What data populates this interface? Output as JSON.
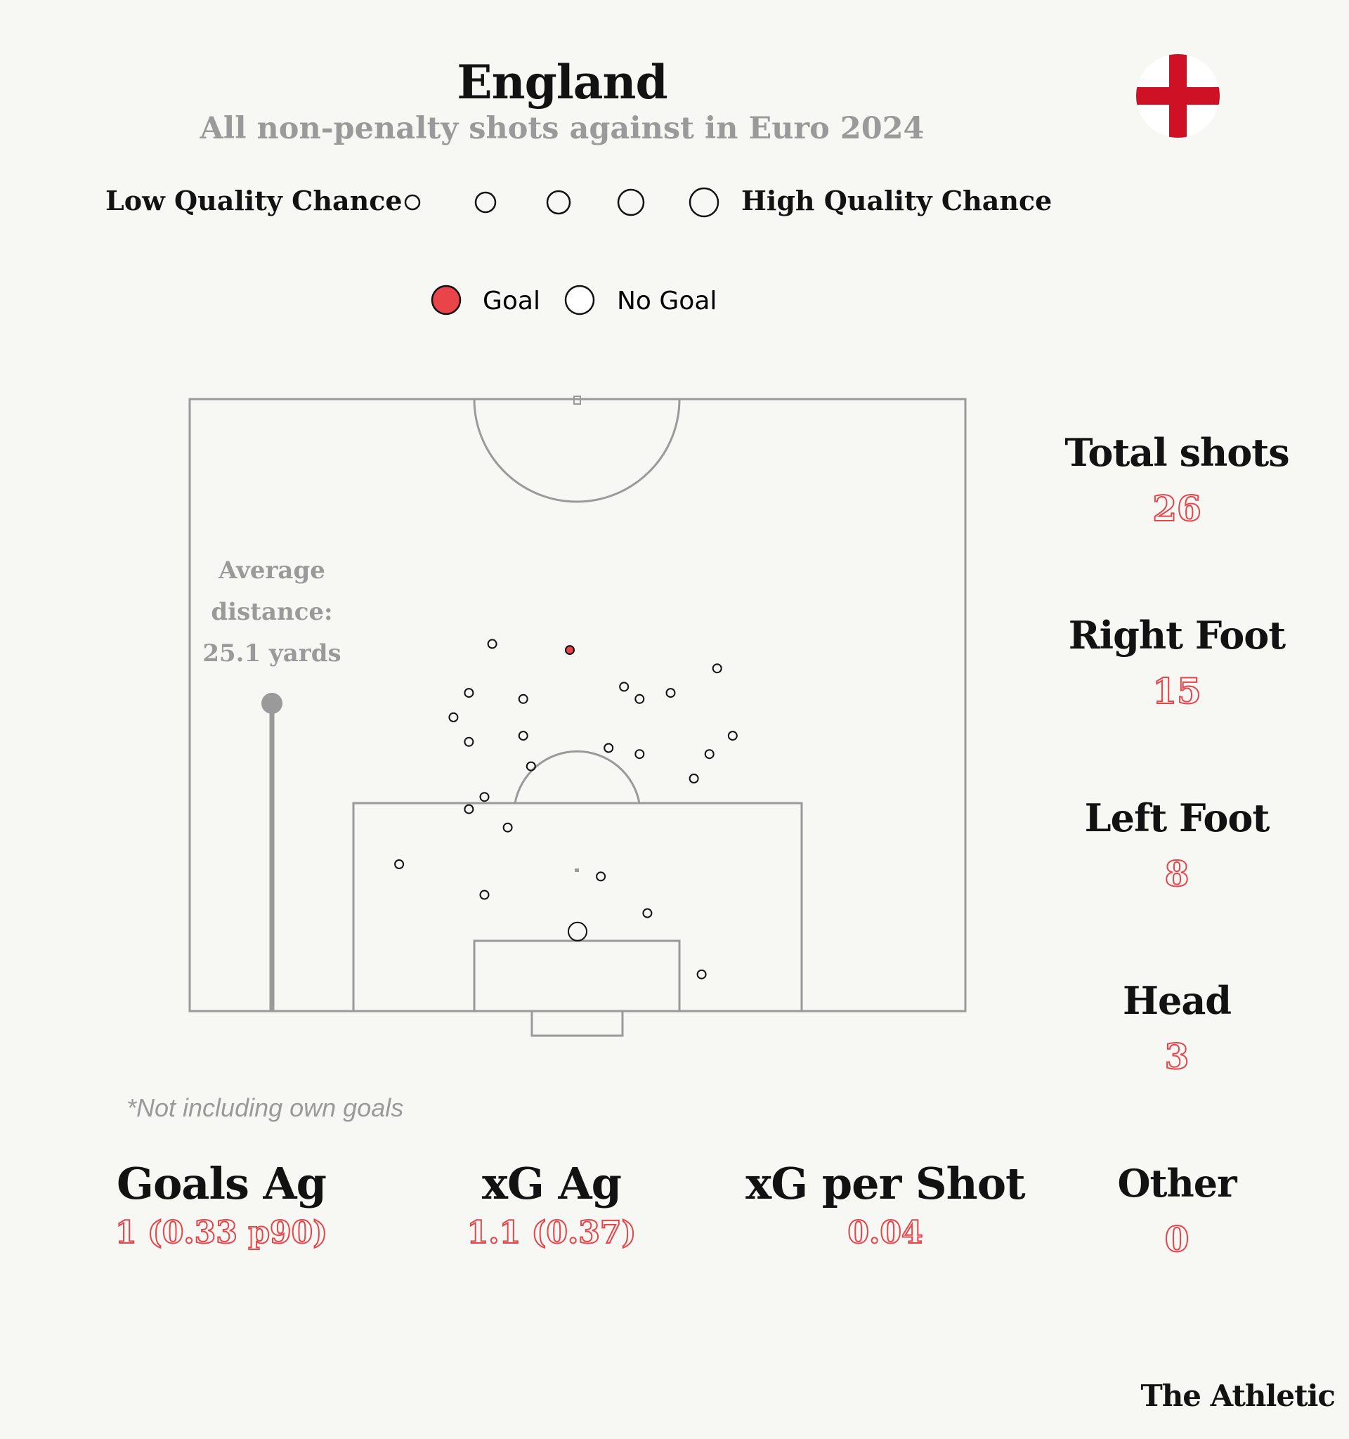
{
  "header": {
    "title": "England",
    "subtitle": "All non-penalty shots against in Euro 2024",
    "flag_icon": "england-flag-icon",
    "flag_colors": {
      "field": "#ffffff",
      "cross": "#ce1124"
    }
  },
  "legend": {
    "low_label": "Low Quality Chance",
    "high_label": "High Quality Chance",
    "goal_label": "Goal",
    "no_goal_label": "No Goal",
    "goal_color": "#e8444a",
    "no_goal_color": "#ffffff"
  },
  "chart_data": {
    "type": "scatter",
    "subtype": "football shot map (half pitch, attacking upwards)",
    "x_axis": "pitch width",
    "y_axis": "distance from goal line",
    "series": [
      {
        "name": "Goal",
        "points": [
          {
            "x": 0.49,
            "y": 0.59,
            "quality": 1
          }
        ]
      },
      {
        "name": "No Goal",
        "points": [
          {
            "x": 0.39,
            "y": 0.6,
            "quality": 1
          },
          {
            "x": 0.36,
            "y": 0.52,
            "quality": 1
          },
          {
            "x": 0.34,
            "y": 0.48,
            "quality": 1
          },
          {
            "x": 0.36,
            "y": 0.44,
            "quality": 1
          },
          {
            "x": 0.38,
            "y": 0.35,
            "quality": 1
          },
          {
            "x": 0.36,
            "y": 0.33,
            "quality": 1
          },
          {
            "x": 0.41,
            "y": 0.3,
            "quality": 1
          },
          {
            "x": 0.43,
            "y": 0.51,
            "quality": 1
          },
          {
            "x": 0.43,
            "y": 0.45,
            "quality": 1
          },
          {
            "x": 0.44,
            "y": 0.4,
            "quality": 1
          },
          {
            "x": 0.56,
            "y": 0.53,
            "quality": 1
          },
          {
            "x": 0.58,
            "y": 0.51,
            "quality": 1
          },
          {
            "x": 0.62,
            "y": 0.52,
            "quality": 1
          },
          {
            "x": 0.68,
            "y": 0.56,
            "quality": 1
          },
          {
            "x": 0.7,
            "y": 0.45,
            "quality": 1
          },
          {
            "x": 0.54,
            "y": 0.43,
            "quality": 1
          },
          {
            "x": 0.58,
            "y": 0.42,
            "quality": 1
          },
          {
            "x": 0.67,
            "y": 0.42,
            "quality": 1
          },
          {
            "x": 0.65,
            "y": 0.38,
            "quality": 1
          },
          {
            "x": 0.27,
            "y": 0.24,
            "quality": 1
          },
          {
            "x": 0.38,
            "y": 0.19,
            "quality": 1
          },
          {
            "x": 0.53,
            "y": 0.22,
            "quality": 1
          },
          {
            "x": 0.59,
            "y": 0.16,
            "quality": 1
          },
          {
            "x": 0.5,
            "y": 0.13,
            "quality": 2
          },
          {
            "x": 0.66,
            "y": 0.06,
            "quality": 1
          }
        ]
      }
    ],
    "average_distance_label": [
      "Average",
      "distance:",
      "25.1 yards"
    ],
    "average_distance_yards": 25.1
  },
  "stats": [
    {
      "label": "Total shots",
      "value": "26"
    },
    {
      "label": "Right Foot",
      "value": "15"
    },
    {
      "label": "Left Foot",
      "value": "8"
    },
    {
      "label": "Head",
      "value": "3"
    },
    {
      "label": "Other",
      "value": "0"
    }
  ],
  "footnote": "*Not including own goals",
  "summary": [
    {
      "label": "Goals Ag",
      "value": "1 (0.33 p90)"
    },
    {
      "label": "xG Ag",
      "value": "1.1 (0.37)"
    },
    {
      "label": "xG per Shot",
      "value": "0.04"
    }
  ],
  "brand": "The Athletic"
}
